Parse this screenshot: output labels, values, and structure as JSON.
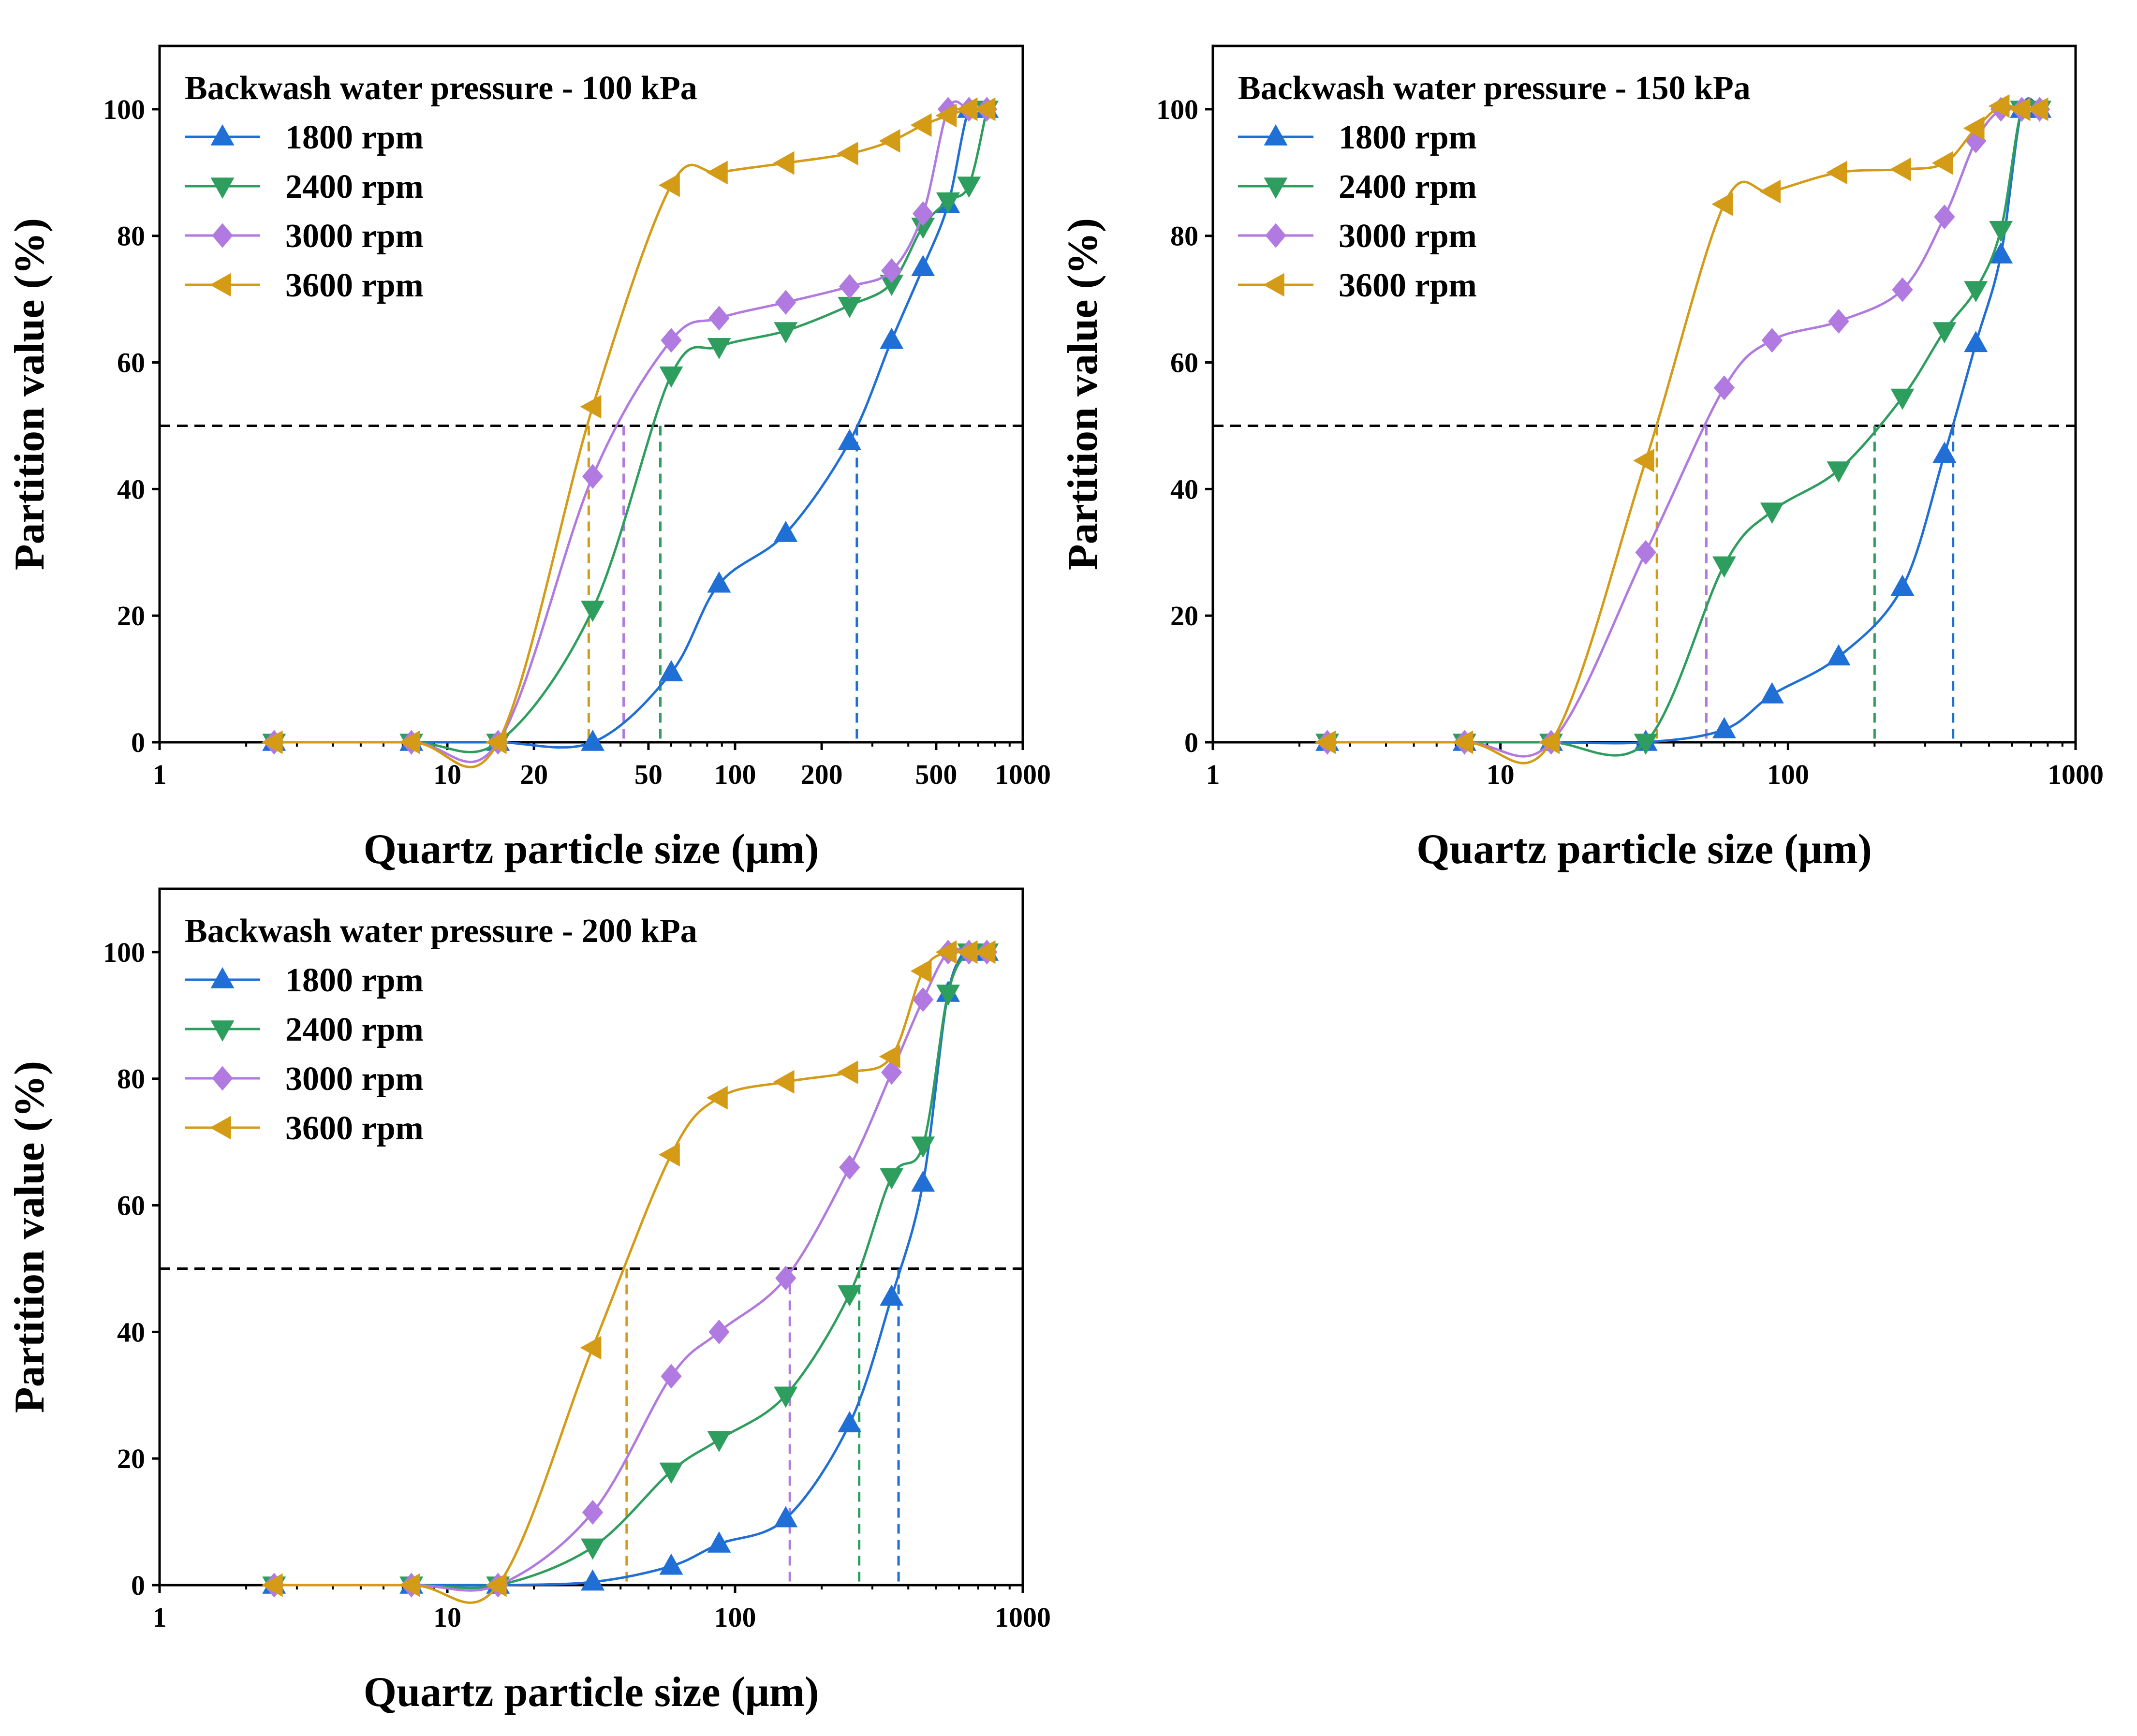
{
  "colors": {
    "s1800": "#1f6fd6",
    "s2400": "#2e9e5e",
    "s3000": "#b07ae0",
    "s3600": "#d49b16",
    "threshold": "#000000"
  },
  "chart_data": [
    {
      "type": "line",
      "title": "Backwash water pressure - 100 kPa",
      "xlabel": "Quartz particle size (μm)",
      "ylabel": "Partition value (%)",
      "xscale": "log",
      "xlim": [
        1,
        1000
      ],
      "ylim": [
        0,
        110
      ],
      "xticks": [
        1,
        10,
        20,
        50,
        100,
        200,
        500,
        1000
      ],
      "xtick_labels": [
        "1",
        "10",
        "20",
        "50",
        "100",
        "200",
        "500",
        "1000"
      ],
      "yticks": [
        0,
        20,
        40,
        60,
        80,
        100
      ],
      "ytick_labels": [
        "0",
        "20",
        "40",
        "60",
        "80",
        "100"
      ],
      "threshold": 50,
      "legend_position": "top-left",
      "series": [
        {
          "name": "1800 rpm",
          "marker": "triangle-up",
          "x": [
            2.5,
            7.5,
            15,
            32,
            60,
            88,
            150,
            250,
            350,
            450,
            550,
            650,
            750
          ],
          "y": [
            0,
            0,
            0,
            0,
            11,
            25,
            33,
            47.5,
            63.5,
            75,
            85,
            100,
            100
          ],
          "d50": 265
        },
        {
          "name": "2400 rpm",
          "marker": "triangle-down",
          "x": [
            2.5,
            7.5,
            15,
            32,
            60,
            88,
            150,
            250,
            350,
            450,
            550,
            650,
            750
          ],
          "y": [
            0,
            0,
            0,
            21,
            58,
            62.5,
            65,
            69,
            72.5,
            81.5,
            85.5,
            88,
            100
          ],
          "d50": 55
        },
        {
          "name": "3000 rpm",
          "marker": "diamond",
          "x": [
            2.5,
            7.5,
            15,
            32,
            60,
            88,
            150,
            250,
            350,
            450,
            550,
            650,
            750
          ],
          "y": [
            0,
            0,
            0,
            42,
            63.5,
            67,
            69.5,
            72,
            74.5,
            83.5,
            100,
            100,
            100
          ],
          "d50": 41
        },
        {
          "name": "3600 rpm",
          "marker": "triangle-left",
          "x": [
            2.5,
            7.5,
            15,
            32,
            60,
            88,
            150,
            250,
            350,
            450,
            550,
            650,
            750
          ],
          "y": [
            0,
            0,
            0,
            53,
            88,
            90,
            91.5,
            93,
            95,
            97.5,
            99,
            100,
            100
          ],
          "d50": 31
        }
      ]
    },
    {
      "type": "line",
      "title": "Backwash water pressure - 150 kPa",
      "xlabel": "Quartz particle size (μm)",
      "ylabel": "Partition value (%)",
      "xscale": "log",
      "xlim": [
        1,
        1000
      ],
      "ylim": [
        0,
        110
      ],
      "xticks": [
        1,
        10,
        100,
        1000
      ],
      "xtick_labels": [
        "1",
        "10",
        "100",
        "1000"
      ],
      "yticks": [
        0,
        20,
        40,
        60,
        80,
        100
      ],
      "ytick_labels": [
        "0",
        "20",
        "40",
        "60",
        "80",
        "100"
      ],
      "threshold": 50,
      "legend_position": "top-left",
      "series": [
        {
          "name": "1800 rpm",
          "marker": "triangle-up",
          "x": [
            2.5,
            7.5,
            15,
            32,
            60,
            88,
            150,
            250,
            350,
            450,
            550,
            650,
            750
          ],
          "y": [
            0,
            0,
            0,
            0,
            2,
            7.5,
            13.5,
            24.5,
            45.5,
            63,
            77,
            100,
            100
          ],
          "d50": 375
        },
        {
          "name": "2400 rpm",
          "marker": "triangle-down",
          "x": [
            2.5,
            7.5,
            15,
            32,
            60,
            88,
            150,
            250,
            350,
            450,
            550,
            650,
            750
          ],
          "y": [
            0,
            0,
            0,
            0,
            28,
            36.5,
            43,
            54.5,
            65,
            71.5,
            81,
            100,
            100
          ],
          "d50": 200
        },
        {
          "name": "3000 rpm",
          "marker": "diamond",
          "x": [
            2.5,
            7.5,
            15,
            32,
            60,
            88,
            150,
            250,
            350,
            450,
            550,
            650,
            750
          ],
          "y": [
            0,
            0,
            0,
            30,
            56,
            63.5,
            66.5,
            71.5,
            83,
            95,
            100,
            100,
            100
          ],
          "d50": 52
        },
        {
          "name": "3600 rpm",
          "marker": "triangle-left",
          "x": [
            2.5,
            7.5,
            15,
            32,
            60,
            88,
            150,
            250,
            350,
            450,
            550,
            650,
            750
          ],
          "y": [
            0,
            0,
            0,
            44.5,
            85,
            87,
            90,
            90.5,
            91.5,
            97,
            100.5,
            100,
            100
          ],
          "d50": 35
        }
      ]
    },
    {
      "type": "line",
      "title": "Backwash water pressure - 200 kPa",
      "xlabel": "Quartz particle size (μm)",
      "ylabel": "Partition value (%)",
      "xscale": "log",
      "xlim": [
        1,
        1000
      ],
      "ylim": [
        0,
        110
      ],
      "xticks": [
        1,
        10,
        100,
        1000
      ],
      "xtick_labels": [
        "1",
        "10",
        "100",
        "1000"
      ],
      "yticks": [
        0,
        20,
        40,
        60,
        80,
        100
      ],
      "ytick_labels": [
        "0",
        "20",
        "40",
        "60",
        "80",
        "100"
      ],
      "threshold": 50,
      "legend_position": "top-left",
      "series": [
        {
          "name": "1800 rpm",
          "marker": "triangle-up",
          "x": [
            2.5,
            7.5,
            15,
            32,
            60,
            88,
            150,
            250,
            350,
            450,
            550,
            650,
            750
          ],
          "y": [
            0,
            0,
            0,
            0.5,
            3,
            6.5,
            10.5,
            25.5,
            45.5,
            63.5,
            93.5,
            100,
            100
          ],
          "d50": 370
        },
        {
          "name": "2400 rpm",
          "marker": "triangle-down",
          "x": [
            2.5,
            7.5,
            15,
            32,
            60,
            88,
            150,
            250,
            350,
            450,
            550,
            650,
            750
          ],
          "y": [
            0,
            0,
            0,
            6,
            18,
            23,
            30,
            46,
            64.5,
            69.5,
            93.5,
            100,
            100
          ],
          "d50": 270
        },
        {
          "name": "3000 rpm",
          "marker": "diamond",
          "x": [
            2.5,
            7.5,
            15,
            32,
            60,
            88,
            150,
            250,
            350,
            450,
            550,
            650,
            750
          ],
          "y": [
            0,
            0,
            0,
            11.5,
            33,
            40,
            48.5,
            66,
            81,
            92.5,
            100,
            100,
            100
          ],
          "d50": 155
        },
        {
          "name": "3600 rpm",
          "marker": "triangle-left",
          "x": [
            2.5,
            7.5,
            15,
            32,
            60,
            88,
            150,
            250,
            350,
            450,
            550,
            650,
            750
          ],
          "y": [
            0,
            0,
            0,
            37.5,
            68,
            77,
            79.5,
            81,
            83.5,
            97,
            100,
            100,
            100
          ],
          "d50": 42
        }
      ]
    }
  ]
}
